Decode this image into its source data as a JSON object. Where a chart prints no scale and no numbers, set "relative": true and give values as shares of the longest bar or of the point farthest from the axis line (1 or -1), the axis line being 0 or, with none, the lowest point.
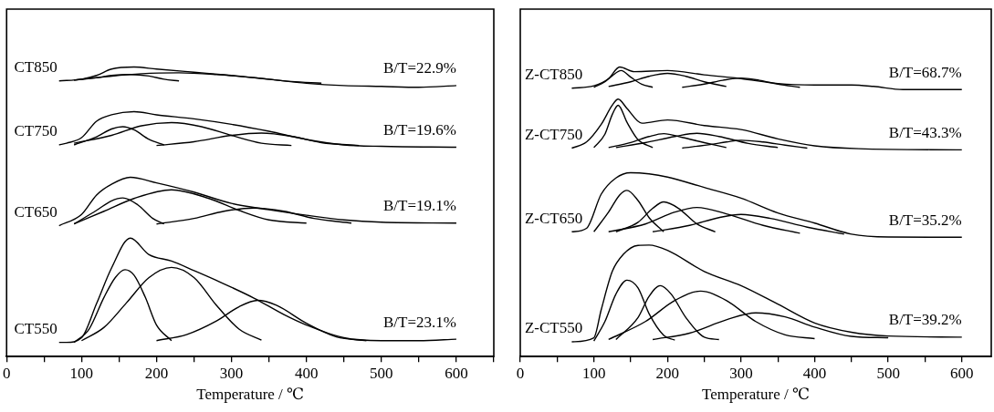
{
  "chart_data": [
    {
      "type": "line",
      "relative": true,
      "xlabel": "Temperature / ℃",
      "xlim": [
        0,
        650
      ],
      "xticks": [
        0,
        {
          "value": 50,
          "label": null
        },
        100,
        {
          "value": 150,
          "label": null
        },
        200,
        {
          "value": 250,
          "label": null
        },
        300,
        {
          "value": 350,
          "label": null
        },
        400,
        {
          "value": 450,
          "label": null
        },
        500,
        {
          "value": 550,
          "label": null
        },
        600,
        {
          "value": 650,
          "label": null
        }
      ],
      "tick_labels": "x",
      "marker": "none",
      "legend": false,
      "annotations": [
        "B/T=22.9%",
        "B/T=19.6%",
        "B/T=19.1%",
        "B/T=23.1%"
      ],
      "series": [
        {
          "name": "CT850",
          "color": "#000000",
          "x": [
            70,
            100,
            120,
            140,
            170,
            200,
            250,
            300,
            350,
            400,
            450,
            500,
            550,
            600
          ],
          "values": [
            0.952,
            0.958,
            0.971,
            0.993,
            1,
            0.993,
            0.982,
            0.971,
            0.958,
            0.944,
            0.936,
            0.933,
            0.93,
            0.936
          ]
        },
        {
          "color": "#000000",
          "x": [
            90,
            120,
            140,
            165,
            190,
            210,
            230
          ],
          "values": [
            0.955,
            0.963,
            0.971,
            0.974,
            0.969,
            0.958,
            0.952
          ]
        },
        {
          "color": "#000000",
          "x": [
            90,
            130,
            180,
            230,
            280,
            330,
            380,
            420
          ],
          "values": [
            0.955,
            0.966,
            0.977,
            0.98,
            0.974,
            0.963,
            0.95,
            0.944
          ]
        },
        {
          "name": "CT750",
          "color": "#000000",
          "x": [
            70,
            80,
            100,
            120,
            140,
            170,
            200,
            250,
            300,
            350,
            400,
            450,
            500,
            600
          ],
          "values": [
            0.731,
            0.737,
            0.756,
            0.813,
            0.835,
            0.846,
            0.835,
            0.821,
            0.802,
            0.778,
            0.75,
            0.731,
            0.726,
            0.723
          ]
        },
        {
          "color": "#000000",
          "x": [
            90,
            120,
            140,
            155,
            170,
            190,
            210
          ],
          "values": [
            0.731,
            0.759,
            0.786,
            0.794,
            0.783,
            0.75,
            0.731
          ]
        },
        {
          "color": "#000000",
          "x": [
            90,
            140,
            180,
            220,
            260,
            300,
            340,
            380
          ],
          "values": [
            0.737,
            0.764,
            0.797,
            0.808,
            0.794,
            0.764,
            0.737,
            0.729
          ]
        },
        {
          "color": "#000000",
          "x": [
            200,
            250,
            300,
            340,
            380,
            420,
            470
          ],
          "values": [
            0.729,
            0.742,
            0.764,
            0.772,
            0.761,
            0.739,
            0.729
          ]
        },
        {
          "name": "CT650",
          "color": "#000000",
          "x": [
            70,
            100,
            120,
            140,
            165,
            200,
            250,
            300,
            350,
            400,
            450,
            500,
            600
          ],
          "values": [
            0.452,
            0.491,
            0.558,
            0.595,
            0.619,
            0.6,
            0.568,
            0.529,
            0.507,
            0.488,
            0.472,
            0.464,
            0.461
          ]
        },
        {
          "color": "#000000",
          "x": [
            90,
            120,
            140,
            155,
            175,
            195,
            210
          ],
          "values": [
            0.458,
            0.505,
            0.538,
            0.548,
            0.524,
            0.477,
            0.458
          ]
        },
        {
          "color": "#000000",
          "x": [
            90,
            130,
            170,
            220,
            270,
            310,
            350,
            400
          ],
          "values": [
            0.458,
            0.502,
            0.546,
            0.576,
            0.546,
            0.505,
            0.472,
            0.461
          ]
        },
        {
          "color": "#000000",
          "x": [
            200,
            250,
            290,
            330,
            370,
            410,
            460
          ],
          "values": [
            0.458,
            0.477,
            0.502,
            0.513,
            0.502,
            0.477,
            0.461
          ]
        },
        {
          "name": "CT550",
          "color": "#000000",
          "x": [
            70,
            80,
            100,
            120,
            140,
            165,
            190,
            220,
            250,
            280,
            330,
            370,
            400,
            450,
            500,
            550,
            600
          ],
          "values": [
            0.049,
            0.049,
            0.065,
            0.183,
            0.306,
            0.409,
            0.352,
            0.33,
            0.297,
            0.263,
            0.202,
            0.145,
            0.109,
            0.065,
            0.055,
            0.055,
            0.06
          ]
        },
        {
          "color": "#000000",
          "x": [
            90,
            110,
            130,
            145,
            158,
            170,
            185,
            200,
            220
          ],
          "values": [
            0.049,
            0.095,
            0.205,
            0.273,
            0.3,
            0.281,
            0.205,
            0.109,
            0.055
          ]
        },
        {
          "color": "#000000",
          "x": [
            100,
            130,
            160,
            190,
            220,
            250,
            280,
            310,
            340
          ],
          "values": [
            0.055,
            0.101,
            0.186,
            0.273,
            0.308,
            0.273,
            0.177,
            0.095,
            0.057
          ]
        },
        {
          "color": "#000000",
          "x": [
            200,
            240,
            280,
            310,
            335,
            360,
            400,
            440,
            480
          ],
          "values": [
            0.055,
            0.076,
            0.123,
            0.172,
            0.194,
            0.177,
            0.115,
            0.068,
            0.055
          ]
        }
      ]
    },
    {
      "type": "line",
      "relative": true,
      "xlabel": "Temperature / ℃",
      "xlim": [
        0,
        640
      ],
      "xticks": [
        0,
        {
          "value": 50,
          "label": null
        },
        100,
        {
          "value": 150,
          "label": null
        },
        200,
        {
          "value": 250,
          "label": null
        },
        300,
        {
          "value": 350,
          "label": null
        },
        400,
        {
          "value": 450,
          "label": null
        },
        500,
        {
          "value": 550,
          "label": null
        },
        600
      ],
      "tick_labels": "x",
      "marker": "none",
      "legend": false,
      "annotations": [
        "B/T=68.7%",
        "B/T=43.3%",
        "B/T=35.2%",
        "B/T=39.2%"
      ],
      "series": [
        {
          "name": "Z-CT850",
          "color": "#000000",
          "x": [
            70,
            100,
            120,
            135,
            155,
            200,
            250,
            300,
            350,
            400,
            450,
            480,
            520,
            600
          ],
          "values": [
            0.927,
            0.935,
            0.96,
            1,
            0.984,
            0.988,
            0.973,
            0.96,
            0.943,
            0.938,
            0.938,
            0.933,
            0.922,
            0.922
          ]
        },
        {
          "color": "#000000",
          "x": [
            100,
            115,
            125,
            137,
            150,
            165,
            180
          ],
          "values": [
            0.93,
            0.949,
            0.97,
            0.988,
            0.965,
            0.941,
            0.93
          ]
        },
        {
          "color": "#000000",
          "x": [
            120,
            150,
            175,
            200,
            225,
            250,
            280
          ],
          "values": [
            0.933,
            0.949,
            0.968,
            0.978,
            0.968,
            0.949,
            0.933
          ]
        },
        {
          "color": "#000000",
          "x": [
            220,
            250,
            275,
            300,
            325,
            350,
            380
          ],
          "values": [
            0.93,
            0.941,
            0.954,
            0.962,
            0.954,
            0.941,
            0.93
          ]
        },
        {
          "name": "Z-CT750",
          "color": "#000000",
          "x": [
            70,
            90,
            110,
            125,
            133,
            145,
            165,
            200,
            250,
            300,
            350,
            400,
            460,
            600
          ],
          "values": [
            0.72,
            0.741,
            0.802,
            0.868,
            0.889,
            0.857,
            0.806,
            0.817,
            0.798,
            0.784,
            0.752,
            0.728,
            0.718,
            0.714
          ]
        },
        {
          "color": "#000000",
          "x": [
            100,
            115,
            125,
            133,
            145,
            160,
            180
          ],
          "values": [
            0.722,
            0.768,
            0.836,
            0.868,
            0.809,
            0.749,
            0.722
          ]
        },
        {
          "color": "#000000",
          "x": [
            120,
            150,
            175,
            195,
            220,
            250,
            280
          ],
          "values": [
            0.722,
            0.739,
            0.76,
            0.77,
            0.757,
            0.739,
            0.722
          ]
        },
        {
          "color": "#000000",
          "x": [
            130,
            170,
            210,
            240,
            270,
            310,
            350
          ],
          "values": [
            0.722,
            0.739,
            0.76,
            0.771,
            0.76,
            0.736,
            0.722
          ]
        },
        {
          "color": "#000000",
          "x": [
            220,
            260,
            280,
            300,
            330,
            360,
            390
          ],
          "values": [
            0.72,
            0.733,
            0.741,
            0.747,
            0.741,
            0.73,
            0.72
          ]
        },
        {
          "name": "Z-CT650",
          "color": "#000000",
          "x": [
            70,
            90,
            110,
            130,
            150,
            175,
            200,
            250,
            300,
            350,
            400,
            450,
            500,
            600
          ],
          "values": [
            0.431,
            0.443,
            0.561,
            0.617,
            0.635,
            0.631,
            0.62,
            0.584,
            0.547,
            0.496,
            0.461,
            0.423,
            0.413,
            0.412
          ]
        },
        {
          "color": "#000000",
          "x": [
            100,
            120,
            135,
            145,
            160,
            175,
            195
          ],
          "values": [
            0.431,
            0.499,
            0.558,
            0.574,
            0.539,
            0.48,
            0.431
          ]
        },
        {
          "color": "#000000",
          "x": [
            130,
            160,
            180,
            195,
            215,
            240,
            265
          ],
          "values": [
            0.431,
            0.464,
            0.512,
            0.534,
            0.512,
            0.458,
            0.431
          ]
        },
        {
          "color": "#000000",
          "x": [
            120,
            170,
            210,
            240,
            280,
            330,
            380
          ],
          "values": [
            0.431,
            0.458,
            0.499,
            0.515,
            0.493,
            0.453,
            0.426
          ]
        },
        {
          "color": "#000000",
          "x": [
            180,
            230,
            270,
            300,
            340,
            390,
            440
          ],
          "values": [
            0.431,
            0.453,
            0.48,
            0.491,
            0.477,
            0.447,
            0.423
          ]
        },
        {
          "name": "Z-CT550",
          "color": "#000000",
          "x": [
            70,
            100,
            110,
            125,
            140,
            160,
            175,
            200,
            250,
            300,
            350,
            400,
            450,
            500,
            600
          ],
          "values": [
            0.051,
            0.065,
            0.162,
            0.294,
            0.353,
            0.384,
            0.385,
            0.367,
            0.294,
            0.245,
            0.181,
            0.116,
            0.084,
            0.071,
            0.067
          ]
        },
        {
          "color": "#000000",
          "x": [
            100,
            115,
            130,
            145,
            160,
            175,
            195,
            210
          ],
          "values": [
            0.054,
            0.121,
            0.216,
            0.264,
            0.237,
            0.148,
            0.073,
            0.057
          ]
        },
        {
          "color": "#000000",
          "x": [
            130,
            160,
            175,
            190,
            205,
            225,
            250,
            270
          ],
          "values": [
            0.059,
            0.135,
            0.208,
            0.245,
            0.216,
            0.135,
            0.067,
            0.059
          ]
        },
        {
          "color": "#000000",
          "x": [
            120,
            170,
            210,
            245,
            280,
            320,
            360,
            400
          ],
          "values": [
            0.059,
            0.121,
            0.194,
            0.226,
            0.194,
            0.121,
            0.075,
            0.062
          ]
        },
        {
          "color": "#000000",
          "x": [
            180,
            230,
            280,
            320,
            360,
            400,
            450,
            500
          ],
          "values": [
            0.059,
            0.081,
            0.127,
            0.151,
            0.137,
            0.102,
            0.07,
            0.065
          ]
        }
      ]
    }
  ]
}
